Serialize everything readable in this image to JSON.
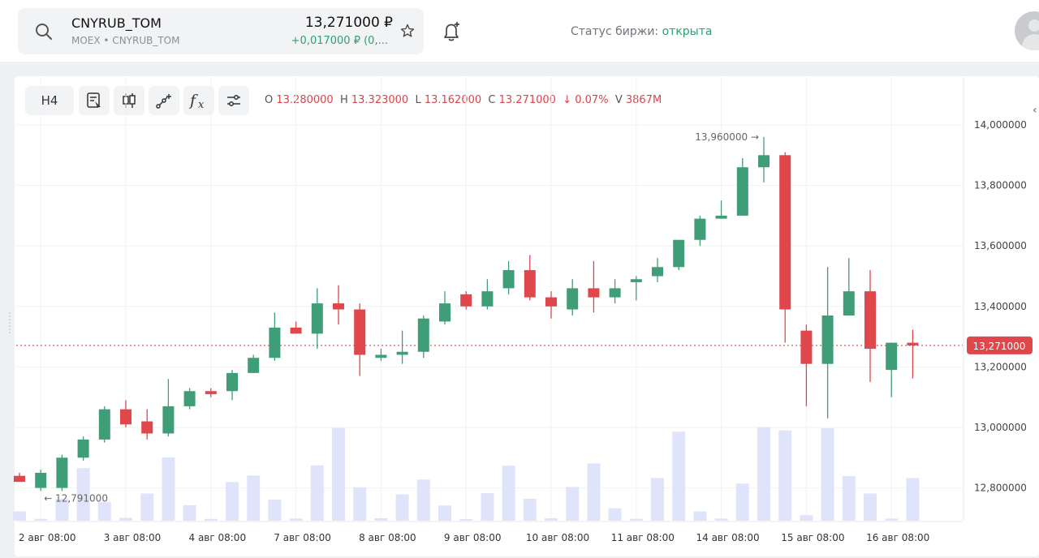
{
  "header": {
    "ticker": "CNYRUB_TOM",
    "exchange_line": "MOEX • CNYRUB_TOM",
    "price": "13,271000 ₽",
    "change": "+0,017000 ₽ (0,...",
    "status_label": "Статус биржи: ",
    "status_value": "открыта"
  },
  "icons": {
    "search": "search-icon",
    "favorite": "star-icon",
    "alert": "bell-plus-icon",
    "user": "avatar-icon"
  },
  "toolbar": {
    "timeframe": "H4",
    "tools": [
      "indicators-icon",
      "chart-type-icon",
      "drawing-icon",
      "formula-icon",
      "settings-icon"
    ]
  },
  "ohlc": {
    "o_label": "O",
    "o": "13.280000",
    "h_label": "H",
    "h": "13.323000",
    "l_label": "L",
    "l": "13.162000",
    "c_label": "C",
    "c": "13.271000",
    "change": "↓ 0.07%",
    "v_label": "V",
    "v": "3867M"
  },
  "colors": {
    "up": "#3f9e78",
    "down": "#e0474c",
    "volume": "#dfe4fb",
    "price_line": "#e0474c",
    "open_status": "#2e9f6e"
  },
  "chart_data": {
    "type": "candlestick",
    "ylim": [
      12.68,
      14.06
    ],
    "y_ticks": [
      "14,000000",
      "13,800000",
      "13,600000",
      "13,400000",
      "13,200000",
      "13,000000",
      "12,800000"
    ],
    "y_tick_values": [
      14.0,
      13.8,
      13.6,
      13.4,
      13.2,
      13.0,
      12.8
    ],
    "x_tick_labels": [
      "2 авг 08:00",
      "3 авг 08:00",
      "4 авг 08:00",
      "7 авг 08:00",
      "8 авг 08:00",
      "9 авг 08:00",
      "10 авг 08:00",
      "11 авг 08:00",
      "14 авг 08:00",
      "15 авг 08:00",
      "16 авг 08:00"
    ],
    "current_price_label": "13,271000",
    "current_price": 13.271,
    "max_label": "13,960000 →",
    "min_label": "← 12,791000",
    "ohlc": [
      [
        12.84,
        12.85,
        12.82,
        12.82
      ],
      [
        12.8,
        12.86,
        12.79,
        12.85
      ],
      [
        12.8,
        12.91,
        12.79,
        12.9
      ],
      [
        12.9,
        12.97,
        12.89,
        12.96
      ],
      [
        12.96,
        13.07,
        12.95,
        13.06
      ],
      [
        13.06,
        13.09,
        13.0,
        13.01
      ],
      [
        13.02,
        13.06,
        12.96,
        12.98
      ],
      [
        12.98,
        13.16,
        12.97,
        13.07
      ],
      [
        13.07,
        13.13,
        13.06,
        13.12
      ],
      [
        13.12,
        13.13,
        13.1,
        13.11
      ],
      [
        13.12,
        13.19,
        13.09,
        13.18
      ],
      [
        13.18,
        13.24,
        13.18,
        13.23
      ],
      [
        13.23,
        13.38,
        13.22,
        13.33
      ],
      [
        13.33,
        13.35,
        13.31,
        13.31
      ],
      [
        13.31,
        13.46,
        13.26,
        13.41
      ],
      [
        13.41,
        13.47,
        13.34,
        13.39
      ],
      [
        13.39,
        13.41,
        13.17,
        13.24
      ],
      [
        13.23,
        13.26,
        13.22,
        13.24
      ],
      [
        13.24,
        13.32,
        13.21,
        13.25
      ],
      [
        13.25,
        13.37,
        13.23,
        13.36
      ],
      [
        13.35,
        13.45,
        13.34,
        13.41
      ],
      [
        13.44,
        13.45,
        13.39,
        13.4
      ],
      [
        13.4,
        13.49,
        13.39,
        13.45
      ],
      [
        13.46,
        13.55,
        13.44,
        13.52
      ],
      [
        13.52,
        13.57,
        13.42,
        13.43
      ],
      [
        13.43,
        13.45,
        13.36,
        13.4
      ],
      [
        13.39,
        13.49,
        13.37,
        13.46
      ],
      [
        13.46,
        13.55,
        13.38,
        13.43
      ],
      [
        13.43,
        13.49,
        13.41,
        13.46
      ],
      [
        13.48,
        13.5,
        13.42,
        13.49
      ],
      [
        13.5,
        13.56,
        13.48,
        13.53
      ],
      [
        13.53,
        13.62,
        13.52,
        13.62
      ],
      [
        13.62,
        13.7,
        13.6,
        13.69
      ],
      [
        13.69,
        13.75,
        13.69,
        13.7
      ],
      [
        13.7,
        13.89,
        13.7,
        13.86
      ],
      [
        13.86,
        13.96,
        13.81,
        13.9
      ],
      [
        13.9,
        13.91,
        13.28,
        13.39
      ],
      [
        13.32,
        13.34,
        13.07,
        13.21
      ],
      [
        13.21,
        13.53,
        13.03,
        13.37
      ],
      [
        13.37,
        13.56,
        13.37,
        13.45
      ],
      [
        13.45,
        13.52,
        13.15,
        13.26
      ],
      [
        13.19,
        13.28,
        13.1,
        13.28
      ],
      [
        13.28,
        13.323,
        13.162,
        13.271
      ]
    ],
    "volume": [
      300,
      60,
      700,
      1700,
      600,
      90,
      880,
      2050,
      500,
      60,
      1250,
      1460,
      680,
      70,
      1790,
      3000,
      1080,
      80,
      850,
      1330,
      490,
      50,
      890,
      1780,
      710,
      80,
      1090,
      1850,
      400,
      60,
      1380,
      2880,
      300,
      70,
      1200,
      3030,
      2920,
      180,
      2990,
      1440,
      880,
      70,
      1380
    ],
    "volume_max": 3200
  }
}
